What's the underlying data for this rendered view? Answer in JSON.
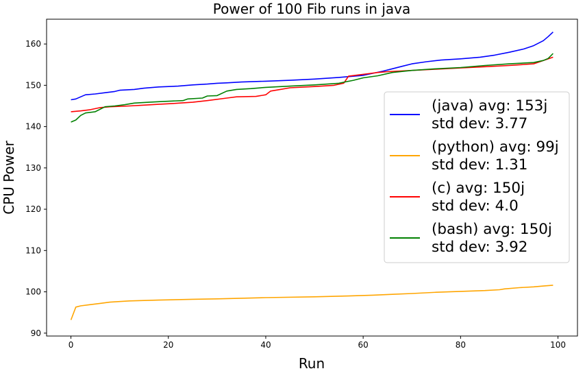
{
  "chart_data": {
    "type": "line",
    "title": "Power of 100 Fib runs in java",
    "xlabel": "Run",
    "ylabel": "CPU Power",
    "xlim": [
      -5,
      104
    ],
    "ylim": [
      89.3,
      166
    ],
    "xticks": [
      0,
      20,
      40,
      60,
      80,
      100
    ],
    "yticks": [
      90,
      100,
      110,
      120,
      130,
      140,
      150,
      160
    ],
    "grid": false,
    "legend_position": "right",
    "series": [
      {
        "color": "#0000ff",
        "legend_lines": [
          "(java) avg: 153j",
          "std dev: 3.77"
        ],
        "points": [
          [
            0,
            146.5
          ],
          [
            1,
            146.7
          ],
          [
            2,
            147.2
          ],
          [
            3,
            147.7
          ],
          [
            5,
            147.9
          ],
          [
            7,
            148.2
          ],
          [
            9,
            148.5
          ],
          [
            10,
            148.8
          ],
          [
            13,
            149.0
          ],
          [
            15,
            149.3
          ],
          [
            18,
            149.6
          ],
          [
            22,
            149.8
          ],
          [
            25,
            150.1
          ],
          [
            28,
            150.3
          ],
          [
            30,
            150.5
          ],
          [
            32,
            150.6
          ],
          [
            35,
            150.8
          ],
          [
            40,
            151.0
          ],
          [
            45,
            151.2
          ],
          [
            50,
            151.5
          ],
          [
            55,
            151.9
          ],
          [
            60,
            152.4
          ],
          [
            62,
            152.9
          ],
          [
            64,
            153.4
          ],
          [
            66,
            154.0
          ],
          [
            68,
            154.6
          ],
          [
            70,
            155.2
          ],
          [
            73,
            155.7
          ],
          [
            76,
            156.1
          ],
          [
            80,
            156.4
          ],
          [
            84,
            156.8
          ],
          [
            87,
            157.3
          ],
          [
            90,
            158.0
          ],
          [
            93,
            158.8
          ],
          [
            95,
            159.6
          ],
          [
            97,
            160.8
          ],
          [
            98,
            161.8
          ],
          [
            99,
            162.9
          ]
        ]
      },
      {
        "color": "#ffa500",
        "legend_lines": [
          "(python) avg: 99j",
          "std dev: 1.31"
        ],
        "points": [
          [
            0,
            93.2
          ],
          [
            1,
            96.3
          ],
          [
            2,
            96.6
          ],
          [
            4,
            96.9
          ],
          [
            6,
            97.2
          ],
          [
            8,
            97.5
          ],
          [
            12,
            97.8
          ],
          [
            18,
            98.0
          ],
          [
            25,
            98.2
          ],
          [
            30,
            98.3
          ],
          [
            40,
            98.6
          ],
          [
            50,
            98.8
          ],
          [
            57,
            99.0
          ],
          [
            62,
            99.2
          ],
          [
            66,
            99.4
          ],
          [
            70,
            99.6
          ],
          [
            75,
            99.9
          ],
          [
            80,
            100.1
          ],
          [
            85,
            100.3
          ],
          [
            88,
            100.5
          ],
          [
            89,
            100.7
          ],
          [
            92,
            101.0
          ],
          [
            95,
            101.2
          ],
          [
            97,
            101.4
          ],
          [
            99,
            101.6
          ]
        ]
      },
      {
        "color": "#ff0000",
        "legend_lines": [
          "(c) avg: 150j",
          "std dev: 4.0"
        ],
        "points": [
          [
            0,
            143.6
          ],
          [
            2,
            143.8
          ],
          [
            4,
            144.1
          ],
          [
            6,
            144.6
          ],
          [
            8,
            144.8
          ],
          [
            12,
            145.0
          ],
          [
            15,
            145.2
          ],
          [
            18,
            145.4
          ],
          [
            21,
            145.6
          ],
          [
            25,
            145.9
          ],
          [
            28,
            146.3
          ],
          [
            32,
            146.9
          ],
          [
            34,
            147.2
          ],
          [
            38,
            147.3
          ],
          [
            40,
            147.7
          ],
          [
            41,
            148.6
          ],
          [
            43,
            149.0
          ],
          [
            45,
            149.4
          ],
          [
            50,
            149.7
          ],
          [
            54,
            150.0
          ],
          [
            56,
            150.5
          ],
          [
            57,
            152.2
          ],
          [
            59,
            152.5
          ],
          [
            61,
            152.8
          ],
          [
            63,
            153.1
          ],
          [
            65,
            153.3
          ],
          [
            70,
            153.6
          ],
          [
            75,
            153.9
          ],
          [
            80,
            154.2
          ],
          [
            85,
            154.5
          ],
          [
            90,
            154.8
          ],
          [
            95,
            155.2
          ],
          [
            97,
            156.0
          ],
          [
            99,
            156.8
          ]
        ]
      },
      {
        "color": "#008000",
        "legend_lines": [
          "(bash) avg: 150j",
          "std dev: 3.92"
        ],
        "points": [
          [
            0,
            141.1
          ],
          [
            1,
            141.6
          ],
          [
            2,
            142.7
          ],
          [
            3,
            143.3
          ],
          [
            5,
            143.6
          ],
          [
            7,
            144.8
          ],
          [
            9,
            145.0
          ],
          [
            11,
            145.3
          ],
          [
            13,
            145.7
          ],
          [
            16,
            145.9
          ],
          [
            19,
            146.1
          ],
          [
            23,
            146.3
          ],
          [
            24,
            146.7
          ],
          [
            27,
            146.9
          ],
          [
            28,
            147.4
          ],
          [
            30,
            147.5
          ],
          [
            32,
            148.6
          ],
          [
            34,
            149.0
          ],
          [
            37,
            149.2
          ],
          [
            40,
            149.5
          ],
          [
            45,
            149.8
          ],
          [
            50,
            150.1
          ],
          [
            55,
            150.5
          ],
          [
            58,
            151.2
          ],
          [
            60,
            151.8
          ],
          [
            63,
            152.3
          ],
          [
            66,
            153.1
          ],
          [
            70,
            153.6
          ],
          [
            75,
            154.0
          ],
          [
            80,
            154.3
          ],
          [
            85,
            154.8
          ],
          [
            90,
            155.2
          ],
          [
            95,
            155.5
          ],
          [
            97,
            156.0
          ],
          [
            98,
            156.5
          ],
          [
            99,
            157.7
          ]
        ]
      }
    ]
  }
}
